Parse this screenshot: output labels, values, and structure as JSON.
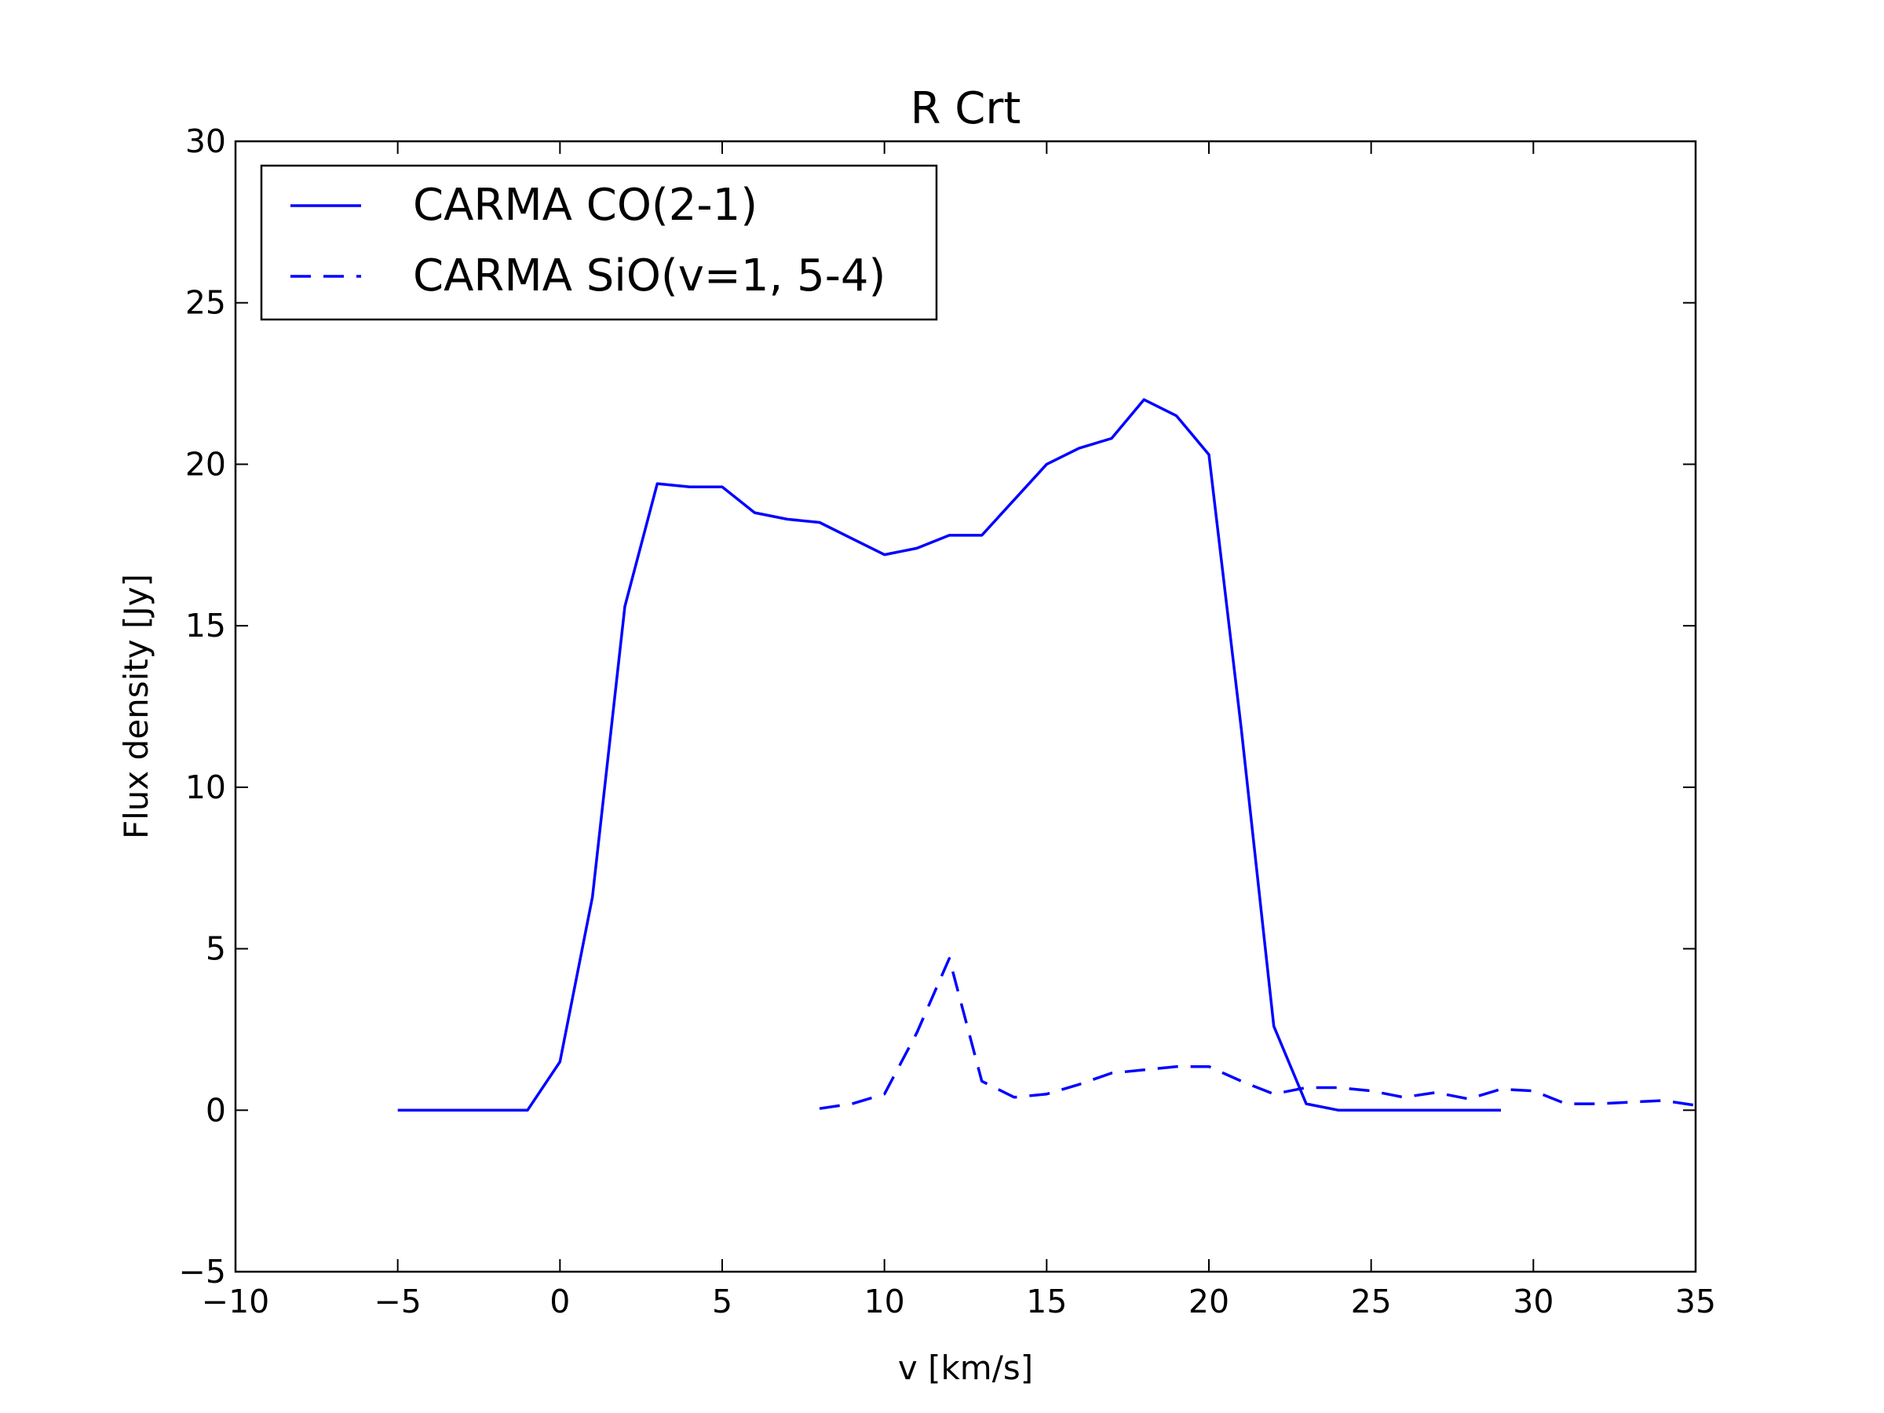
{
  "chart_data": {
    "type": "line",
    "title": "R Crt",
    "xlabel": "v [km/s]",
    "ylabel": "Flux density [Jy]",
    "xlim": [
      -10,
      35
    ],
    "ylim": [
      -5,
      30
    ],
    "xticks": [
      -10,
      -5,
      0,
      5,
      10,
      15,
      20,
      25,
      30,
      35
    ],
    "yticks": [
      -5,
      0,
      5,
      10,
      15,
      20,
      25,
      30
    ],
    "xtick_labels": [
      "−10",
      "−5",
      "0",
      "5",
      "10",
      "15",
      "20",
      "25",
      "30",
      "35"
    ],
    "ytick_labels": [
      "−5",
      "0",
      "5",
      "10",
      "15",
      "20",
      "25",
      "30"
    ],
    "grid": false,
    "legend_position": "top-left",
    "line_color": "#0000ff",
    "series": [
      {
        "name": "CARMA CO(2-1)",
        "style": "solid",
        "x": [
          -5,
          -4,
          -3,
          -2,
          -1,
          0,
          1,
          2,
          3,
          4,
          5,
          6,
          7,
          8,
          9,
          10,
          11,
          12,
          13,
          14,
          15,
          16,
          17,
          18,
          19,
          20,
          21,
          22,
          23,
          24,
          25,
          26,
          27,
          28,
          29
        ],
        "y": [
          0,
          0,
          0,
          0,
          0,
          1.5,
          6.6,
          15.6,
          19.4,
          19.3,
          19.3,
          18.5,
          18.3,
          18.2,
          17.7,
          17.2,
          17.4,
          17.8,
          17.8,
          18.9,
          20.0,
          20.5,
          20.8,
          22.0,
          21.5,
          20.3,
          11.8,
          2.6,
          0.2,
          0,
          0,
          0,
          0,
          0,
          0
        ]
      },
      {
        "name": "CARMA SiO(v=1, 5-4)",
        "style": "dashed",
        "x": [
          8,
          9,
          10,
          11,
          12,
          13,
          14,
          15,
          16,
          17,
          18,
          19,
          20,
          21,
          22,
          23,
          24,
          25,
          26,
          27,
          28,
          29,
          30,
          31,
          32,
          33,
          34,
          35
        ],
        "y": [
          0.05,
          0.2,
          0.5,
          2.4,
          4.7,
          0.9,
          0.4,
          0.5,
          0.8,
          1.15,
          1.25,
          1.35,
          1.35,
          0.9,
          0.5,
          0.7,
          0.7,
          0.6,
          0.4,
          0.55,
          0.35,
          0.65,
          0.6,
          0.2,
          0.2,
          0.25,
          0.3,
          0.15
        ]
      }
    ]
  }
}
